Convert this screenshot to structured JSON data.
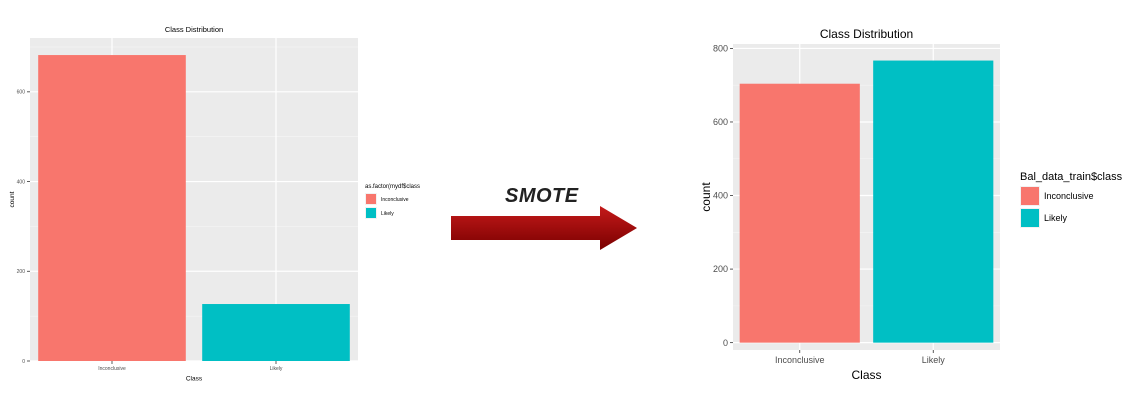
{
  "chart_data": [
    {
      "type": "bar",
      "title": "Class Distribution",
      "xlabel": "Class",
      "ylabel": "count",
      "categories": [
        "Inconclusive",
        "Likely"
      ],
      "values": [
        682,
        127
      ],
      "colors": [
        "#F8766D",
        "#00BFC4"
      ],
      "ylim": [
        0,
        720
      ],
      "yticks": [
        0,
        200,
        400,
        600
      ],
      "grid": true,
      "legend": {
        "title": "as.factor(mydf$class)",
        "entries": [
          "Inconclusive",
          "Likely"
        ],
        "placement": "right"
      }
    },
    {
      "type": "bar",
      "title": "Class Distribution",
      "xlabel": "Class",
      "ylabel": "count",
      "categories": [
        "Inconclusive",
        "Likely"
      ],
      "values": [
        704,
        767
      ],
      "colors": [
        "#F8766D",
        "#00BFC4"
      ],
      "ylim": [
        -20,
        812
      ],
      "yticks": [
        0,
        200,
        400,
        600,
        800
      ],
      "grid": true,
      "legend": {
        "title": "Bal_data_train$class",
        "entries": [
          "Inconclusive",
          "Likely"
        ],
        "placement": "right"
      }
    }
  ],
  "arrow": {
    "label": "SMOTE",
    "color": "#9B0000"
  }
}
